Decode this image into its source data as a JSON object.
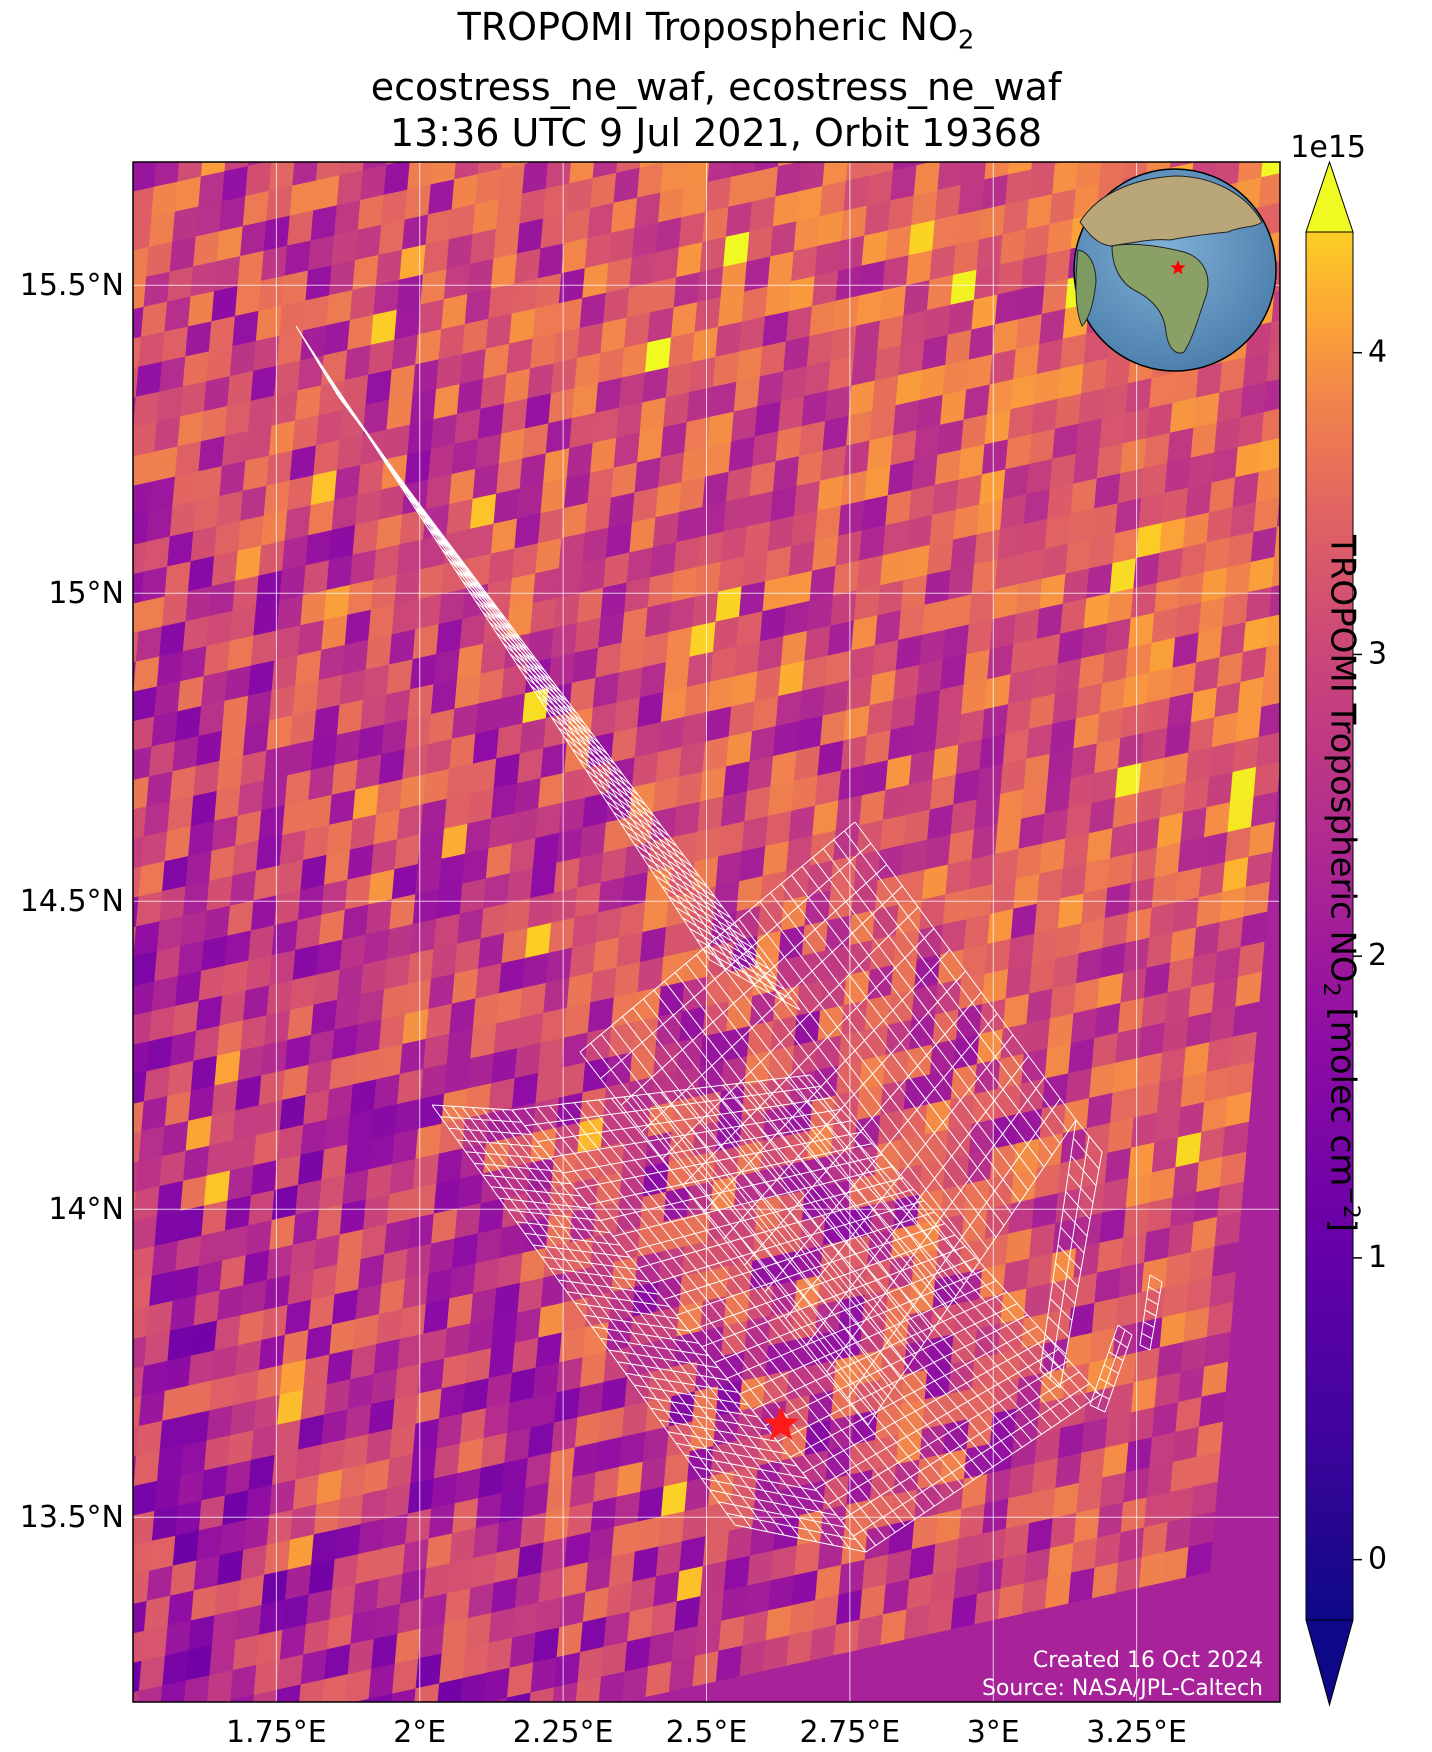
{
  "title": {
    "line1_prefix": "TROPOMI Tropospheric NO",
    "line1_sub": "2",
    "line2": "ecostress_ne_waf, ecostress_ne_waf",
    "line3": "13:36 UTC 9 Jul 2021, Orbit 19368"
  },
  "map": {
    "lon_ticks": [
      "1.75°E",
      "2°E",
      "2.25°E",
      "2.5°E",
      "2.75°E",
      "3°E",
      "3.25°E"
    ],
    "lat_ticks": [
      "15.5°N",
      "15°N",
      "14.5°N",
      "14°N",
      "13.5°N"
    ],
    "lon_range": [
      1.5,
      3.5
    ],
    "lat_range": [
      13.2,
      15.7
    ],
    "gridlines": true,
    "marker": {
      "lon": 2.63,
      "lat": 13.65,
      "color": "#ff1a1a",
      "icon": "star-icon"
    },
    "inset": {
      "type": "globe",
      "marker_icon": "star-icon",
      "marker_color": "#ff0000"
    },
    "footprint_color": "#ffffff",
    "credits": {
      "created": "Created 16 Oct 2024",
      "source": "Source: NASA/JPL-Caltech"
    }
  },
  "colorbar": {
    "colormap": "plasma",
    "scale_label": "1e15",
    "ticks": [
      "0",
      "1",
      "2",
      "3",
      "4"
    ],
    "range": [
      -0.2,
      4.4
    ],
    "extend": "both",
    "label_prefix": "TROPOMI Tropospheric NO",
    "label_sub": "2",
    "label_suffix": " [molec cm",
    "label_sup": "−2",
    "label_end": "]"
  }
}
